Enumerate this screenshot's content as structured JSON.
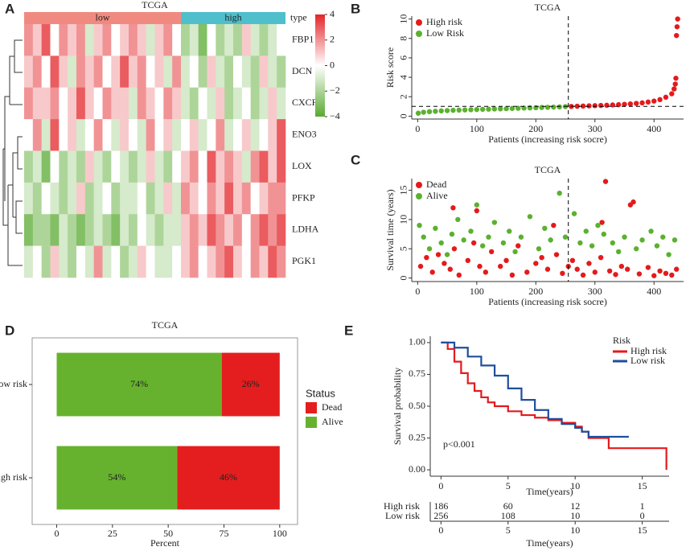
{
  "chart_data": [
    {
      "type": "heatmap",
      "panel": "A",
      "title": "TCGA",
      "type_label": "type",
      "groups": [
        {
          "name": "low",
          "color": "#f08a80",
          "columns": 18
        },
        {
          "name": "high",
          "color": "#4fbfcc",
          "columns": 12
        }
      ],
      "low_color": "#5aaa32",
      "mid_color": "#ffffff",
      "high_color": "#e3262a",
      "clim": [
        -4,
        4
      ],
      "cticks": [
        4,
        2,
        0,
        {
          "value": -2,
          "label": "−2"
        },
        {
          "value": -4,
          "label": "−4"
        }
      ],
      "rows": [
        {
          "name": "FBP1",
          "values": [
            2,
            1,
            3,
            0,
            2,
            1,
            2,
            -1,
            1,
            2,
            0,
            1,
            2,
            1,
            -1,
            1,
            2,
            0,
            -2,
            -1,
            -3,
            0,
            -2,
            -1,
            -2,
            1,
            -1,
            -2,
            -1,
            0
          ]
        },
        {
          "name": "DCN",
          "values": [
            1,
            2,
            0,
            3,
            1,
            -1,
            2,
            1,
            2,
            0,
            1,
            3,
            1,
            2,
            0,
            1,
            -1,
            2,
            -1,
            0,
            -2,
            1,
            -1,
            -2,
            0,
            -1,
            -2,
            1,
            -1,
            -2
          ]
        },
        {
          "name": "CXCR4",
          "values": [
            2,
            1,
            1,
            2,
            0,
            1,
            3,
            1,
            0,
            2,
            1,
            1,
            -1,
            2,
            1,
            0,
            2,
            1,
            -1,
            -2,
            0,
            -1,
            1,
            -2,
            -1,
            0,
            -2,
            -1,
            1,
            -1
          ]
        },
        {
          "name": "ENO3",
          "values": [
            0,
            2,
            -1,
            3,
            0,
            1,
            -1,
            0,
            2,
            0,
            -1,
            1,
            0,
            -1,
            2,
            0,
            1,
            -1,
            0,
            1,
            -1,
            0,
            2,
            -1,
            0,
            1,
            -1,
            0,
            1,
            3
          ]
        },
        {
          "name": "LOX",
          "values": [
            -2,
            -1,
            -3,
            0,
            -2,
            -1,
            -2,
            1,
            -1,
            -2,
            0,
            -1,
            -2,
            -1,
            1,
            -1,
            -2,
            0,
            1,
            2,
            0,
            3,
            1,
            2,
            1,
            -1,
            2,
            3,
            1,
            3
          ]
        },
        {
          "name": "PFKP",
          "values": [
            -1,
            -2,
            0,
            -1,
            -2,
            -1,
            1,
            -2,
            -1,
            0,
            -2,
            -1,
            -1,
            0,
            -2,
            -1,
            1,
            -1,
            2,
            1,
            0,
            2,
            1,
            3,
            1,
            2,
            0,
            1,
            2,
            2
          ]
        },
        {
          "name": "LDHA",
          "values": [
            -3,
            -2,
            -2,
            -3,
            -1,
            -2,
            -3,
            -2,
            -1,
            -2,
            -3,
            -1,
            -2,
            0,
            -1,
            -2,
            -1,
            -1,
            1,
            2,
            1,
            3,
            2,
            1,
            2,
            0,
            2,
            3,
            2,
            3
          ]
        },
        {
          "name": "PGK1",
          "values": [
            -1,
            0,
            -2,
            1,
            -1,
            -2,
            0,
            -1,
            2,
            -1,
            0,
            -2,
            -1,
            1,
            0,
            -1,
            -1,
            0,
            1,
            2,
            0,
            1,
            2,
            3,
            1,
            0,
            2,
            1,
            3,
            2
          ]
        }
      ]
    },
    {
      "type": "scatter",
      "panel": "B",
      "title": "TCGA",
      "xlabel": "Patients (increasing risk socre)",
      "ylabel": "Risk score",
      "xlim": [
        -10,
        450
      ],
      "xticks": [
        0,
        100,
        200,
        300,
        400
      ],
      "ylim": [
        -0.3,
        10.3
      ],
      "yticks": [
        0,
        2,
        4,
        6,
        8,
        10
      ],
      "vline": 255,
      "hline": 1,
      "series": [
        {
          "name": "High risk",
          "color": "#e41a1c",
          "x": [
            260,
            270,
            280,
            290,
            300,
            310,
            320,
            330,
            340,
            350,
            360,
            370,
            380,
            390,
            400,
            410,
            420,
            430,
            434,
            436,
            437,
            438,
            439,
            440
          ],
          "y": [
            1.0,
            1.02,
            1.04,
            1.06,
            1.08,
            1.1,
            1.12,
            1.15,
            1.18,
            1.22,
            1.26,
            1.31,
            1.37,
            1.45,
            1.55,
            1.7,
            1.95,
            2.3,
            2.8,
            3.3,
            3.9,
            8.3,
            9.2,
            10.0
          ]
        },
        {
          "name": "Low Risk",
          "color": "#5bb12f",
          "x": [
            1,
            10,
            20,
            30,
            40,
            50,
            60,
            70,
            80,
            90,
            100,
            110,
            120,
            130,
            140,
            150,
            160,
            170,
            180,
            190,
            200,
            210,
            220,
            230,
            240,
            250
          ],
          "y": [
            0.3,
            0.4,
            0.46,
            0.5,
            0.54,
            0.57,
            0.6,
            0.62,
            0.64,
            0.66,
            0.68,
            0.7,
            0.72,
            0.74,
            0.75,
            0.77,
            0.79,
            0.81,
            0.83,
            0.85,
            0.87,
            0.89,
            0.91,
            0.93,
            0.95,
            0.98
          ]
        }
      ]
    },
    {
      "type": "scatter",
      "panel": "C",
      "title": "TCGA",
      "xlabel": "Patients (increasing risk socre)",
      "ylabel": "Survival time (years)",
      "xlim": [
        -10,
        450
      ],
      "xticks": [
        0,
        100,
        200,
        300,
        400
      ],
      "ylim": [
        -0.6,
        17
      ],
      "yticks": [
        0,
        5,
        10,
        15
      ],
      "vline": 255,
      "series": [
        {
          "name": "Dead",
          "color": "#e41a1c",
          "x": [
            5,
            15,
            25,
            35,
            45,
            55,
            62,
            70,
            85,
            95,
            105,
            115,
            125,
            140,
            150,
            160,
            170,
            185,
            200,
            210,
            220,
            235,
            245,
            255,
            262,
            270,
            280,
            290,
            300,
            310,
            318,
            325,
            335,
            345,
            355,
            365,
            375,
            390,
            400,
            410,
            420,
            430,
            438,
            100,
            230,
            312,
            360,
            60
          ],
          "y": [
            2,
            3.5,
            1,
            4,
            2.5,
            1.5,
            5,
            0.5,
            3,
            6,
            2,
            1,
            4.5,
            2,
            3,
            0.5,
            5.5,
            1,
            2.5,
            3.5,
            1.5,
            4,
            0.8,
            2,
            3,
            1.5,
            0.5,
            2.5,
            1,
            3.5,
            16.5,
            1.2,
            0.6,
            2,
            1.5,
            13,
            0.7,
            1.8,
            0.4,
            1.2,
            0.8,
            0.5,
            1.5,
            11.5,
            9,
            9.5,
            12.5,
            12
          ]
        },
        {
          "name": "Alive",
          "color": "#5bb12f",
          "x": [
            3,
            10,
            20,
            30,
            40,
            50,
            58,
            68,
            78,
            90,
            100,
            110,
            120,
            130,
            145,
            155,
            165,
            175,
            190,
            205,
            215,
            225,
            240,
            250,
            265,
            275,
            285,
            295,
            305,
            315,
            330,
            340,
            350,
            370,
            380,
            395,
            405,
            415,
            425,
            435
          ],
          "y": [
            9,
            7,
            5,
            8.5,
            6,
            4,
            7.5,
            10,
            6.5,
            8,
            12.5,
            5.5,
            7,
            9.5,
            6,
            8,
            4.5,
            7,
            10.5,
            5,
            8.5,
            6.5,
            14.5,
            7,
            11,
            6,
            8,
            5.5,
            9,
            7.5,
            6,
            4.5,
            7,
            5,
            6.5,
            8,
            5.5,
            7,
            4,
            6.5
          ]
        }
      ]
    },
    {
      "type": "stacked_bar",
      "panel": "D",
      "title": "TCGA",
      "xlabel": "Percent",
      "legend_title": "Status",
      "categories": [
        "Low risk",
        "High risk"
      ],
      "xlim": [
        -11,
        108
      ],
      "xticks": [
        0,
        25,
        50,
        75,
        100
      ],
      "series": [
        {
          "name": "Dead",
          "color": "#e41e1e",
          "values": [
            26,
            46
          ],
          "value_labels": [
            "26%",
            "46%"
          ]
        },
        {
          "name": "Alive",
          "color": "#66b22e",
          "values": [
            74,
            54
          ],
          "value_labels": [
            "74%",
            "54%"
          ]
        }
      ]
    },
    {
      "type": "km",
      "panel": "E",
      "xlabel": "Time(years)",
      "ylabel": "Survival probability",
      "legend_title": "Risk",
      "annotation": "p<0.001",
      "xlim": [
        -0.8,
        17
      ],
      "xticks": [
        0,
        5,
        10,
        15
      ],
      "ylim": [
        -0.05,
        1.05
      ],
      "yticks": [
        {
          "value": 0,
          "label": "0.00"
        },
        {
          "value": 0.25,
          "label": "0.25"
        },
        {
          "value": 0.5,
          "label": "0.50"
        },
        {
          "value": 0.75,
          "label": "0.75"
        },
        {
          "value": 1,
          "label": "1.00"
        }
      ],
      "series": [
        {
          "name": "High risk",
          "color": "#e41a1c",
          "x": [
            0,
            0.5,
            1,
            1.5,
            2,
            2.5,
            3,
            3.5,
            4,
            5,
            6,
            7,
            8,
            9,
            10,
            10.5,
            11,
            12,
            12.5,
            16.8,
            16.8
          ],
          "y": [
            1,
            0.95,
            0.85,
            0.76,
            0.68,
            0.62,
            0.57,
            0.53,
            0.5,
            0.46,
            0.43,
            0.41,
            0.39,
            0.37,
            0.34,
            0.3,
            0.25,
            0.25,
            0.17,
            0.17,
            0
          ]
        },
        {
          "name": "Low risk",
          "color": "#1f4e9c",
          "x": [
            0,
            1,
            2,
            3,
            4,
            5,
            6,
            7,
            8,
            9,
            10,
            10.5,
            11,
            14
          ],
          "y": [
            1,
            0.96,
            0.89,
            0.82,
            0.74,
            0.64,
            0.55,
            0.47,
            0.4,
            0.36,
            0.33,
            0.3,
            0.26,
            0.26
          ]
        }
      ],
      "risk_table": {
        "xticks": [
          0,
          5,
          10,
          15
        ],
        "xlabel": "Time(years)",
        "rows": [
          {
            "name": "High risk",
            "values": [
              186,
              60,
              12,
              1
            ]
          },
          {
            "name": "Low risk",
            "values": [
              256,
              108,
              10,
              0
            ]
          }
        ]
      }
    }
  ]
}
